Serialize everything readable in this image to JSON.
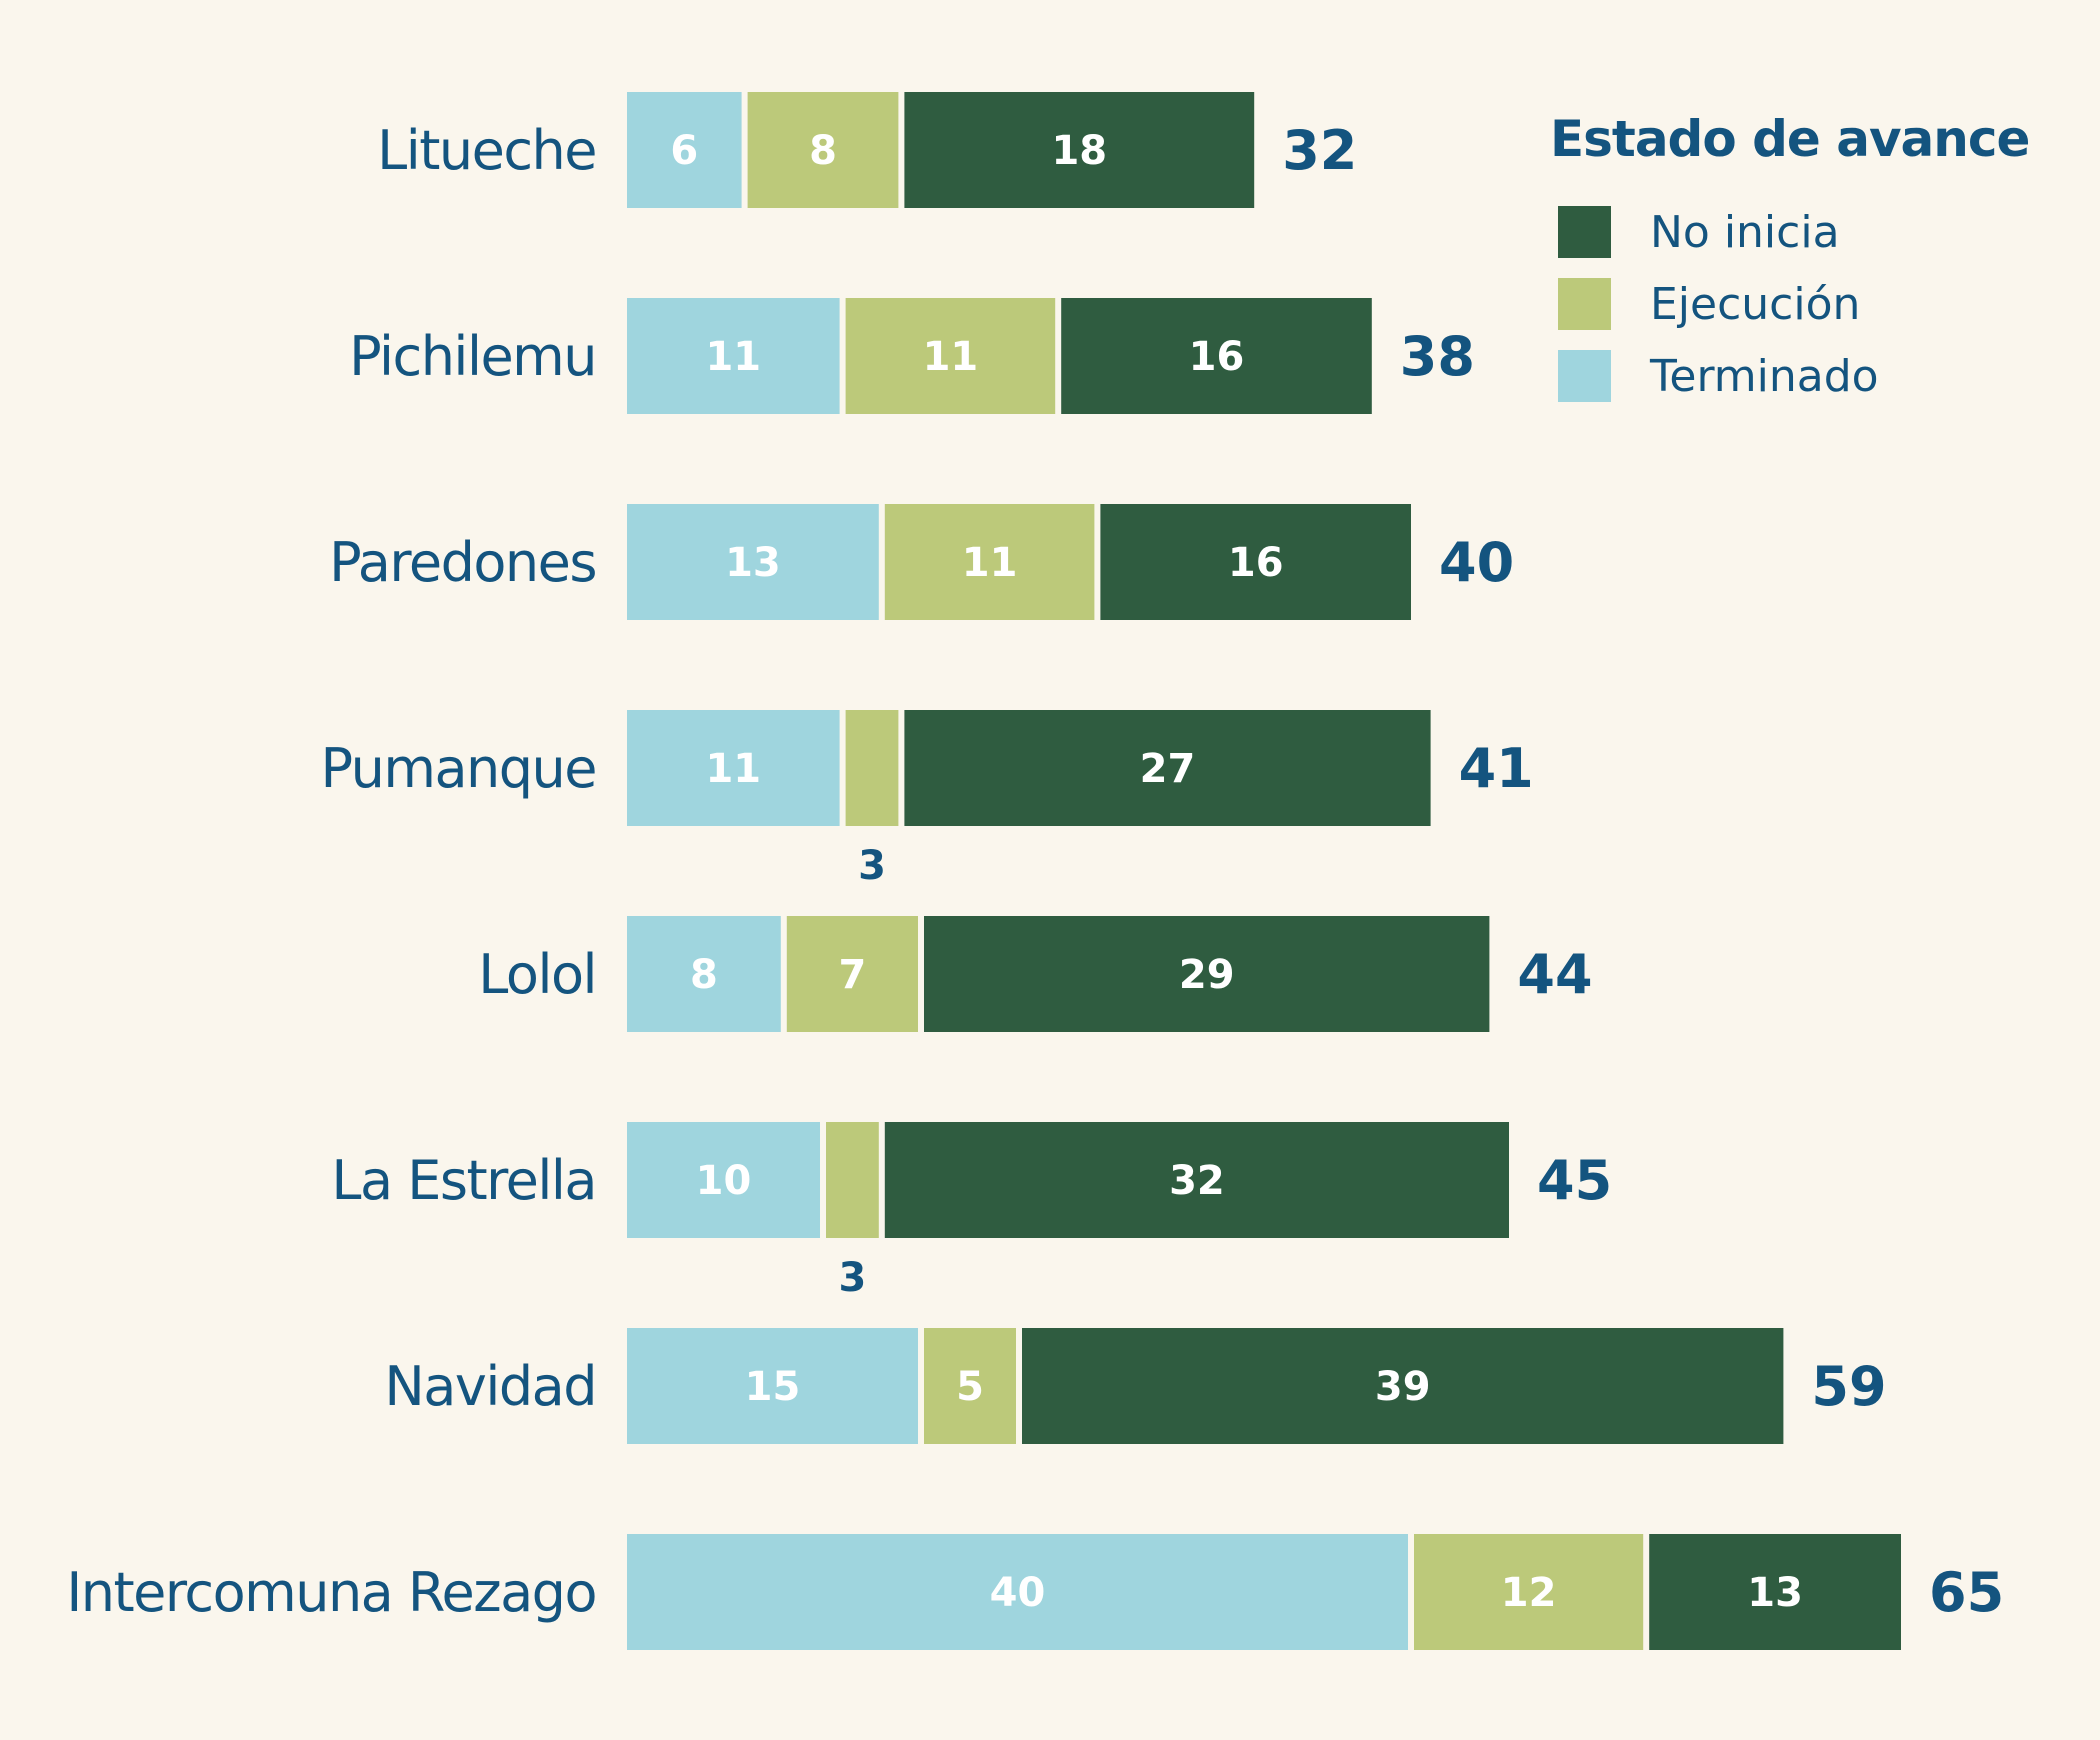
{
  "chart_data": {
    "type": "bar",
    "orientation": "horizontal",
    "stacked": true,
    "categories": [
      "Litueche",
      "Pichilemu",
      "Paredones",
      "Pumanque",
      "Lolol",
      "La Estrella",
      "Navidad",
      "Intercomuna Rezago"
    ],
    "series": [
      {
        "name": "Terminado",
        "color": "#9fd5de",
        "values": [
          6,
          11,
          13,
          11,
          8,
          10,
          15,
          40
        ]
      },
      {
        "name": "Ejecución",
        "color": "#bcc97a",
        "values": [
          8,
          11,
          11,
          3,
          7,
          3,
          5,
          12
        ]
      },
      {
        "name": "No inicia",
        "color": "#2f5c40",
        "values": [
          18,
          16,
          16,
          27,
          29,
          32,
          39,
          13
        ]
      }
    ],
    "totals": [
      32,
      38,
      40,
      41,
      44,
      45,
      59,
      65
    ],
    "legend": {
      "title": "Estado de avance",
      "placement": "top-right",
      "items": [
        "No inicia",
        "Ejecución",
        "Terminado"
      ]
    },
    "title": "",
    "xlabel": "",
    "ylabel": "",
    "grid": false
  }
}
